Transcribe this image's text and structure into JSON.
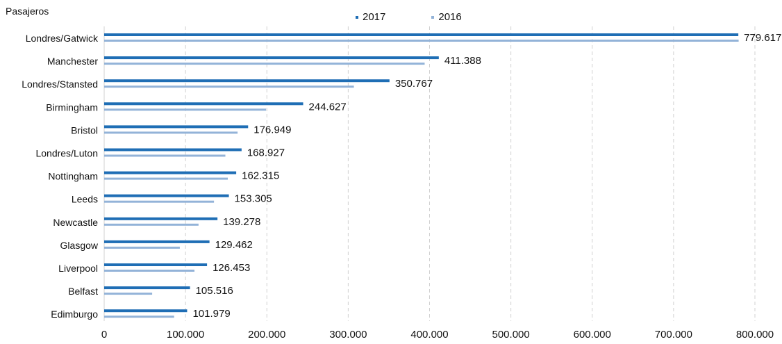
{
  "chart_data": {
    "type": "bar",
    "orientation": "horizontal",
    "ylabel": "Pasajeros",
    "categories": [
      "Londres/Gatwick",
      "Manchester",
      "Londres/Stansted",
      "Birmingham",
      "Bristol",
      "Londres/Luton",
      "Nottingham",
      "Leeds",
      "Newcastle",
      "Glasgow",
      "Liverpool",
      "Belfast",
      "Edimburgo"
    ],
    "series": [
      {
        "name": "2017",
        "color": "#1f6eb5",
        "values": [
          779617,
          411388,
          350767,
          244627,
          176949,
          168927,
          162315,
          153305,
          139278,
          129462,
          126453,
          105516,
          101979
        ],
        "labels": [
          "779.617",
          "411.388",
          "350.767",
          "244.627",
          "176.949",
          "168.927",
          "162.315",
          "153.305",
          "139.278",
          "129.462",
          "126.453",
          "105.516",
          "101.979"
        ]
      },
      {
        "name": "2016",
        "color": "#93b3d8",
        "values": [
          780000,
          394000,
          307000,
          199000,
          164000,
          149000,
          152000,
          135000,
          116000,
          93000,
          111000,
          59000,
          86000
        ]
      }
    ],
    "xlim": [
      0,
      800000
    ],
    "xticks": [
      0,
      100000,
      200000,
      300000,
      400000,
      500000,
      600000,
      700000,
      800000
    ],
    "xtick_labels": [
      "0",
      "100.000",
      "200.000",
      "300.000",
      "400.000",
      "500.000",
      "600.000",
      "700.000",
      "800.000"
    ],
    "grid": "vertical-dashed",
    "legend_position": "top"
  }
}
